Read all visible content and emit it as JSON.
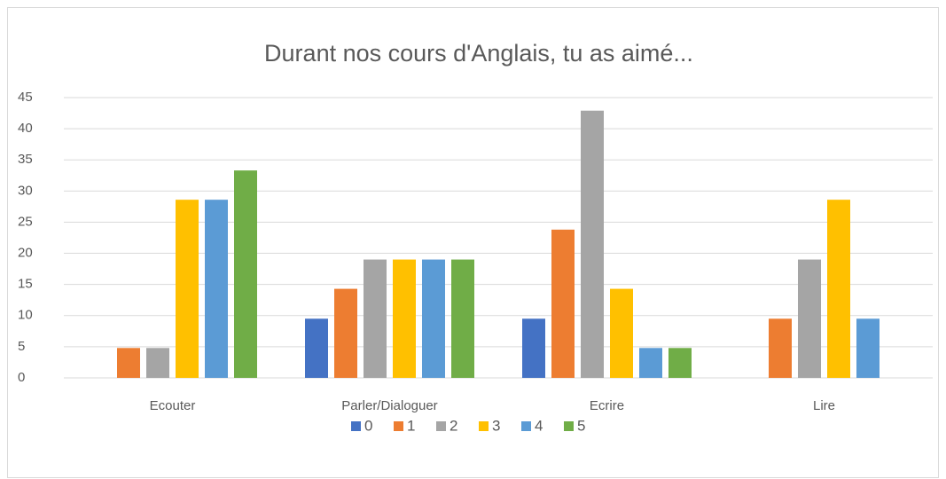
{
  "chart_data": {
    "type": "bar",
    "title": "Durant nos cours d'Anglais, tu as aimé...",
    "categories": [
      "Ecouter",
      "Parler/Dialoguer",
      "Ecrire",
      "Lire"
    ],
    "series": [
      {
        "name": "0",
        "color": "#4472c4",
        "values": [
          0,
          9.5,
          9.5,
          0
        ]
      },
      {
        "name": "1",
        "color": "#ed7d31",
        "values": [
          4.8,
          14.3,
          23.8,
          9.5
        ]
      },
      {
        "name": "2",
        "color": "#a5a5a5",
        "values": [
          4.8,
          19,
          42.9,
          19
        ]
      },
      {
        "name": "3",
        "color": "#ffc000",
        "values": [
          28.6,
          19,
          14.3,
          28.6
        ]
      },
      {
        "name": "4",
        "color": "#5b9bd5",
        "values": [
          28.6,
          19,
          4.8,
          9.5
        ]
      },
      {
        "name": "5",
        "color": "#70ad47",
        "values": [
          33.3,
          19,
          4.8,
          0
        ]
      }
    ],
    "ylim": [
      0,
      45
    ],
    "yticks": [
      0,
      5,
      10,
      15,
      20,
      25,
      30,
      35,
      40,
      45
    ],
    "grid": true,
    "legend": "bottom"
  }
}
